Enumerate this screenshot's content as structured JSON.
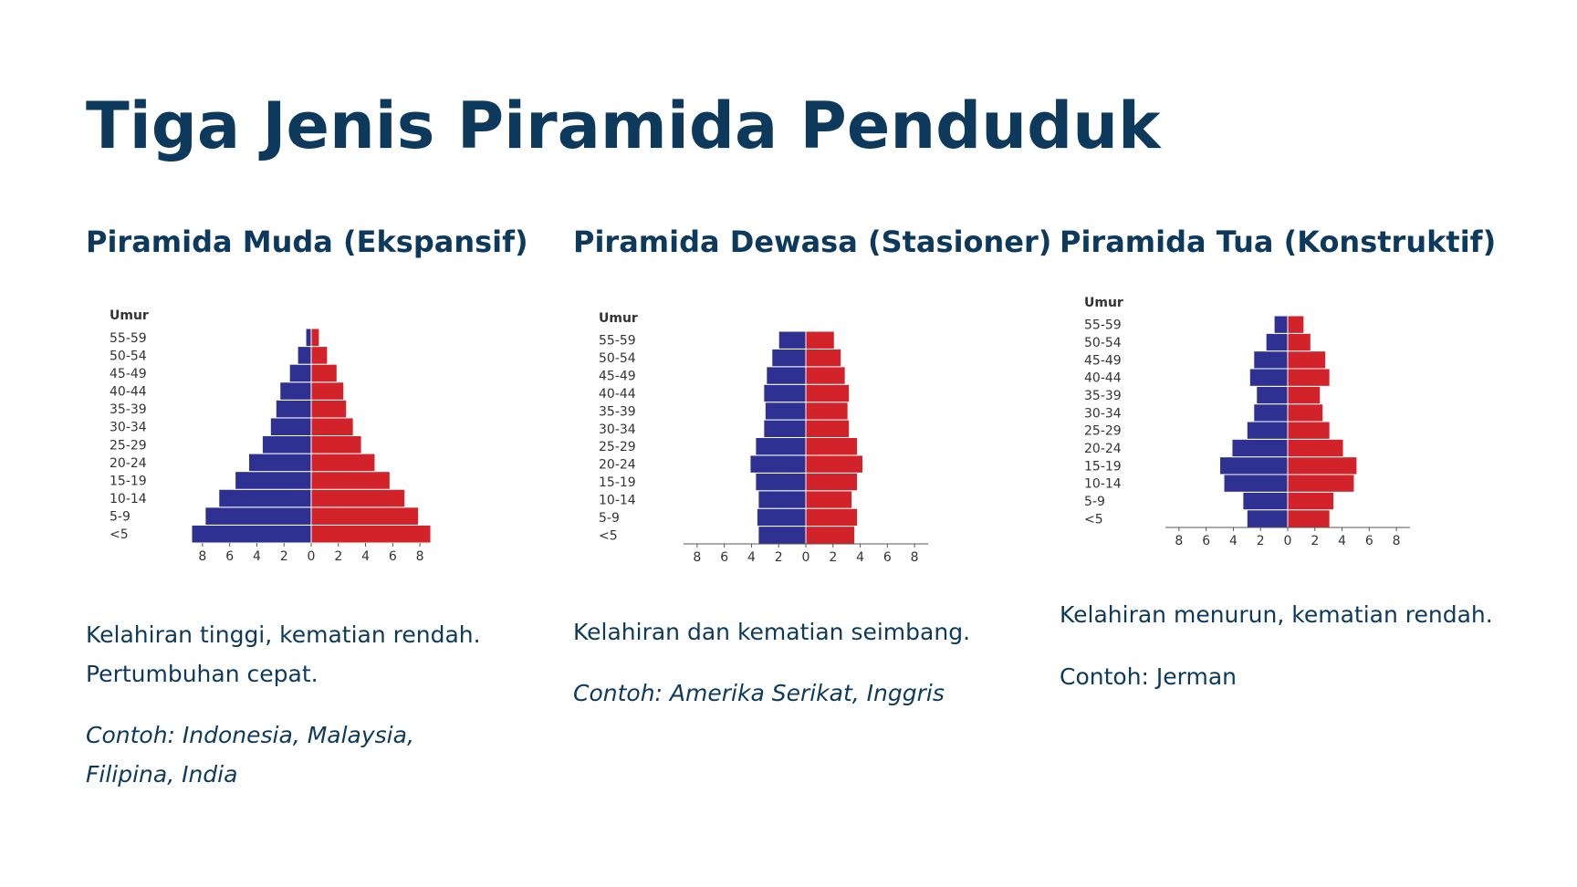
{
  "title": "Tiga Jenis Piramida Penduduk",
  "chart_data": [
    {
      "type": "pyramid",
      "title": "Piramida Muda (Ekspansif)",
      "ylabel": "Umur",
      "categories": [
        "<5",
        "5-9",
        "10-14",
        "15-19",
        "20-24",
        "25-29",
        "30-34",
        "35-39",
        "40-44",
        "45-49",
        "50-54",
        "55-59"
      ],
      "series": [
        {
          "color": "#2e3192",
          "side": "left",
          "values": [
            8.8,
            7.8,
            6.8,
            5.6,
            4.6,
            3.6,
            3.0,
            2.6,
            2.3,
            1.6,
            1.0,
            0.4
          ]
        },
        {
          "color": "#d2232a",
          "side": "right",
          "values": [
            8.8,
            7.9,
            6.9,
            5.8,
            4.7,
            3.7,
            3.1,
            2.6,
            2.4,
            1.9,
            1.2,
            0.6
          ]
        }
      ],
      "xlim": [
        -9,
        9
      ],
      "xticks": [
        {
          "value": -8,
          "label": "8"
        },
        {
          "value": -6,
          "label": "6"
        },
        {
          "value": -4,
          "label": "4"
        },
        {
          "value": -2,
          "label": "2"
        },
        0,
        2,
        4,
        6,
        8
      ],
      "axis_line": false,
      "description": [
        "Kelahiran tinggi, kematian rendah.",
        "Pertumbuhan cepat."
      ],
      "example": [
        "Contoh: Indonesia, Malaysia,",
        "Filipina, India"
      ]
    },
    {
      "type": "pyramid",
      "title": "Piramida Dewasa (Stasioner)",
      "ylabel": "Umur",
      "categories": [
        "<5",
        "5-9",
        "10-14",
        "15-19",
        "20-24",
        "25-29",
        "30-34",
        "35-39",
        "40-44",
        "45-49",
        "50-54",
        "55-59"
      ],
      "series": [
        {
          "color": "#2e3192",
          "side": "left",
          "values": [
            3.5,
            3.6,
            3.5,
            3.7,
            4.1,
            3.7,
            3.1,
            3.0,
            3.1,
            2.9,
            2.5,
            2.0
          ]
        },
        {
          "color": "#d2232a",
          "side": "right",
          "values": [
            3.6,
            3.8,
            3.4,
            3.8,
            4.2,
            3.8,
            3.2,
            3.1,
            3.2,
            2.9,
            2.6,
            2.1
          ]
        }
      ],
      "xlim": [
        -9,
        9
      ],
      "xticks": [
        {
          "value": -8,
          "label": "8"
        },
        {
          "value": -6,
          "label": "6"
        },
        {
          "value": -4,
          "label": "4"
        },
        {
          "value": -2,
          "label": "2"
        },
        0,
        2,
        4,
        6,
        8
      ],
      "axis_line": true,
      "description": [
        "Kelahiran dan kematian seimbang."
      ],
      "example": [
        "Contoh: Amerika Serikat, Inggris"
      ]
    },
    {
      "type": "pyramid",
      "title": "Piramida Tua (Konstruktif)",
      "ylabel": "Umur",
      "categories": [
        "<5",
        "5-9",
        "10-14",
        "15-19",
        "20-24",
        "25-29",
        "30-34",
        "35-39",
        "40-44",
        "45-49",
        "50-54",
        "55-59"
      ],
      "series": [
        {
          "color": "#2e3192",
          "side": "left",
          "values": [
            3.0,
            3.3,
            4.7,
            5.0,
            4.1,
            3.0,
            2.5,
            2.3,
            2.8,
            2.5,
            1.6,
            1.0
          ]
        },
        {
          "color": "#d2232a",
          "side": "right",
          "values": [
            3.1,
            3.4,
            4.9,
            5.1,
            4.1,
            3.1,
            2.6,
            2.4,
            3.1,
            2.8,
            1.7,
            1.2
          ]
        }
      ],
      "xlim": [
        -9,
        9
      ],
      "xticks": [
        {
          "value": -8,
          "label": "8"
        },
        {
          "value": -6,
          "label": "6"
        },
        {
          "value": -4,
          "label": "4"
        },
        {
          "value": -2,
          "label": "2"
        },
        0,
        2,
        4,
        6,
        8
      ],
      "axis_line": true,
      "description": [
        "Kelahiran menurun, kematian rendah."
      ],
      "example": [
        "Contoh: Jerman"
      ]
    }
  ]
}
